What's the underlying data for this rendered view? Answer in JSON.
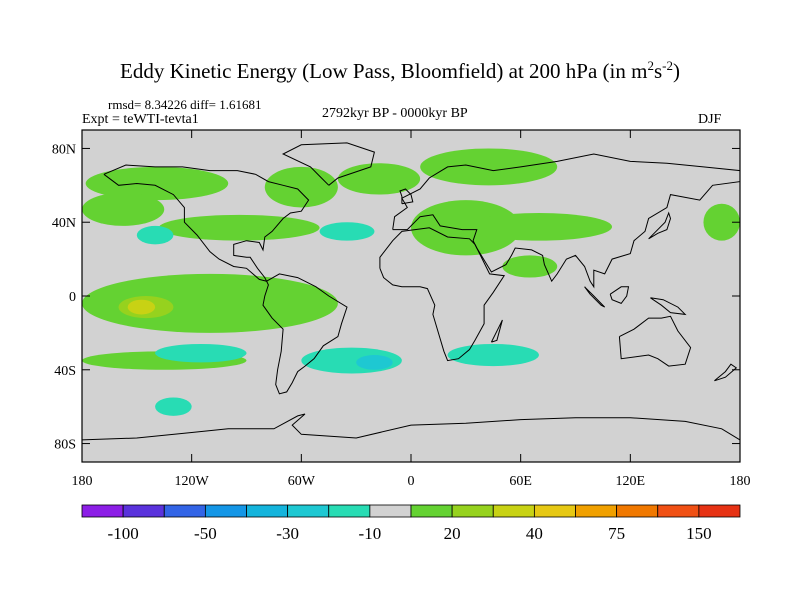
{
  "chart_data": {
    "type": "heatmap",
    "title_main": "Eddy Kinetic Energy (Low Pass, Bloomfield) at 200 hPa (in m",
    "title_sup1": "2",
    "title_mid": "s",
    "title_sup2": "-2",
    "title_end": ")",
    "stats": "rmsd= 8.34226 diff= 1.61681",
    "expt": "Expt = teWTI-tevta1",
    "period": "2792kyr BP - 0000kyr BP",
    "season": "DJF",
    "xlim": [
      -180,
      180
    ],
    "ylim": [
      -90,
      90
    ],
    "x_ticks": [
      {
        "value": -180,
        "label": "180"
      },
      {
        "value": -120,
        "label": "120W"
      },
      {
        "value": -60,
        "label": "60W"
      },
      {
        "value": 0,
        "label": "0"
      },
      {
        "value": 60,
        "label": "60E"
      },
      {
        "value": 120,
        "label": "120E"
      },
      {
        "value": 180,
        "label": "180"
      }
    ],
    "y_ticks": [
      {
        "value": 80,
        "label": "80N"
      },
      {
        "value": 40,
        "label": "40N"
      },
      {
        "value": 0,
        "label": "0"
      },
      {
        "value": -40,
        "label": "40S"
      },
      {
        "value": -80,
        "label": "80S"
      }
    ],
    "colorbar": {
      "colors": [
        "#8c1ee6",
        "#5a32dc",
        "#3264e6",
        "#1496e6",
        "#14b4dc",
        "#1ec8d2",
        "#28dcb4",
        "#d2d2d2",
        "#64d232",
        "#96d21e",
        "#c8d214",
        "#e6c814",
        "#f0a000",
        "#f07800",
        "#f05014",
        "#e63214"
      ],
      "labels": [
        {
          "boundary": 1,
          "text": "-100"
        },
        {
          "boundary": 3,
          "text": "-50"
        },
        {
          "boundary": 5,
          "text": "-30"
        },
        {
          "boundary": 7,
          "text": "-10"
        },
        {
          "boundary": 9,
          "text": "20"
        },
        {
          "boundary": 11,
          "text": "40"
        },
        {
          "boundary": 13,
          "text": "75"
        },
        {
          "boundary": 15,
          "text": "150"
        }
      ]
    },
    "background_level_color": "#d2d2d2",
    "anomaly_regions": [
      {
        "name": "N America north",
        "lon": [
          -178,
          -100
        ],
        "lat": [
          52,
          70
        ],
        "color": "#64d232"
      },
      {
        "name": "N Pacific-America band",
        "lon": [
          -180,
          -135
        ],
        "lat": [
          38,
          56
        ],
        "color": "#64d232"
      },
      {
        "name": "N America belt",
        "lon": [
          -138,
          -50
        ],
        "lat": [
          30,
          44
        ],
        "color": "#64d232"
      },
      {
        "name": "Arctic Canada",
        "lon": [
          -80,
          -40
        ],
        "lat": [
          48,
          70
        ],
        "color": "#64d232"
      },
      {
        "name": "North Atlantic",
        "lon": [
          -40,
          5
        ],
        "lat": [
          55,
          72
        ],
        "color": "#64d232"
      },
      {
        "name": "Siberia",
        "lon": [
          5,
          80
        ],
        "lat": [
          60,
          80
        ],
        "color": "#64d232"
      },
      {
        "name": "Middle East",
        "lon": [
          0,
          60
        ],
        "lat": [
          22,
          52
        ],
        "color": "#64d232"
      },
      {
        "name": "South Asia",
        "lon": [
          30,
          110
        ],
        "lat": [
          30,
          45
        ],
        "color": "#64d232"
      },
      {
        "name": "Indian Ocean",
        "lon": [
          50,
          80
        ],
        "lat": [
          10,
          22
        ],
        "color": "#64d232"
      },
      {
        "name": "NE Pacific",
        "lon": [
          160,
          180
        ],
        "lat": [
          30,
          50
        ],
        "color": "#64d232"
      },
      {
        "name": "Tropical E Pacific",
        "lon": [
          -180,
          -40
        ],
        "lat": [
          -20,
          12
        ],
        "color": "#64d232"
      },
      {
        "name": "Tropical Pacific core",
        "lon": [
          -160,
          -130
        ],
        "lat": [
          -12,
          0
        ],
        "color": "#96d21e"
      },
      {
        "name": "Tropical Pacific max",
        "lon": [
          -155,
          -140
        ],
        "lat": [
          -10,
          -2
        ],
        "color": "#c8d214"
      },
      {
        "name": "South Pacific",
        "lon": [
          -180,
          -90
        ],
        "lat": [
          -40,
          -30
        ],
        "color": "#64d232"
      },
      {
        "name": "South Atlantic",
        "lon": [
          -60,
          -5
        ],
        "lat": [
          -42,
          -28
        ],
        "color": "#28dcb4"
      },
      {
        "name": "South Atlantic core",
        "lon": [
          -30,
          -10
        ],
        "lat": [
          -40,
          -32
        ],
        "color": "#1ec8d2"
      },
      {
        "name": "N Pacific minus",
        "lon": [
          -150,
          -130
        ],
        "lat": [
          28,
          38
        ],
        "color": "#28dcb4"
      },
      {
        "name": "Central Atlantic minus",
        "lon": [
          -50,
          -20
        ],
        "lat": [
          30,
          40
        ],
        "color": "#28dcb4"
      },
      {
        "name": "S Pacific minus",
        "lon": [
          -140,
          -90
        ],
        "lat": [
          -36,
          -26
        ],
        "color": "#28dcb4"
      },
      {
        "name": "Indian Ocean minus",
        "lon": [
          20,
          70
        ],
        "lat": [
          -38,
          -26
        ],
        "color": "#28dcb4"
      },
      {
        "name": "Southern Ocean minus",
        "lon": [
          -140,
          -120
        ],
        "lat": [
          -65,
          -55
        ],
        "color": "#28dcb4"
      }
    ]
  }
}
